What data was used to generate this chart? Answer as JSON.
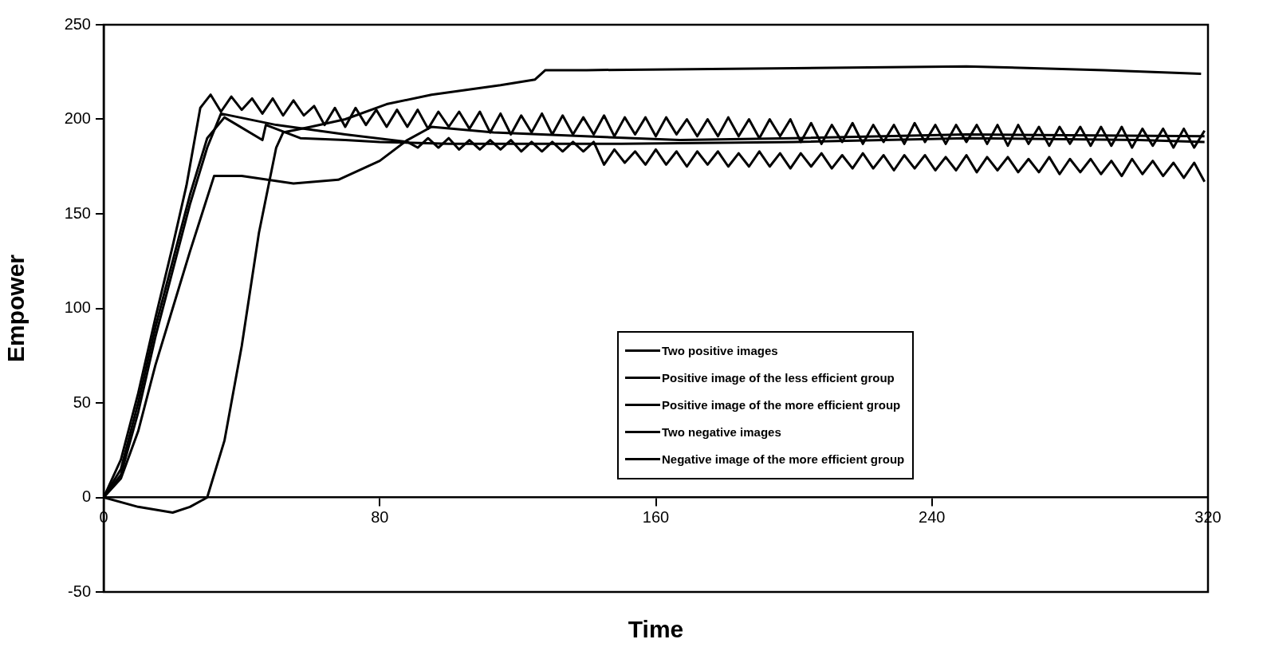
{
  "chart_data": {
    "type": "line",
    "xlabel": "Time",
    "ylabel": "Empower",
    "xlim": [
      0,
      320
    ],
    "xticks": [
      0,
      80,
      160,
      240,
      320
    ],
    "ylim": [
      -50,
      250
    ],
    "yticks": [
      -50,
      0,
      50,
      100,
      150,
      200,
      250
    ],
    "legend": "bottom right",
    "marker": "none",
    "line_style": "solid",
    "series": [
      {
        "name": "Two positive images",
        "color": "#000000",
        "x": [
          0,
          10,
          20,
          25,
          30,
          35,
          40,
          45,
          50,
          52,
          60,
          70,
          82,
          95,
          115,
          125,
          128,
          140,
          200,
          250,
          290,
          318
        ],
        "values": [
          0,
          -5,
          -8,
          -5,
          0,
          30,
          80,
          140,
          185,
          193,
          196,
          200,
          208,
          213,
          218,
          221,
          226,
          226,
          227,
          228,
          226,
          224
        ]
      },
      {
        "name": "Positive image of the less efficient group",
        "color": "#000000",
        "x": [
          0,
          5,
          10,
          15,
          20,
          24,
          28,
          31,
          34,
          37,
          40,
          43,
          46,
          49,
          52,
          55,
          58,
          61,
          64,
          67,
          70,
          73,
          76,
          79,
          82,
          85,
          88,
          91,
          94,
          97,
          100,
          103,
          106,
          109,
          112,
          115,
          118,
          121,
          124,
          127,
          130,
          133,
          136,
          139,
          142,
          145,
          148,
          151,
          154,
          157,
          160,
          163,
          166,
          169,
          172,
          175,
          178,
          181,
          184,
          187,
          190,
          193,
          196,
          199,
          202,
          205,
          208,
          211,
          214,
          217,
          220,
          223,
          226,
          229,
          232,
          235,
          238,
          241,
          244,
          247,
          250,
          253,
          256,
          259,
          262,
          265,
          268,
          271,
          274,
          277,
          280,
          283,
          286,
          289,
          292,
          295,
          298,
          301,
          304,
          307,
          310,
          313,
          316,
          319
        ],
        "values": [
          0,
          20,
          55,
          95,
          133,
          165,
          206,
          213,
          204,
          212,
          205,
          211,
          203,
          211,
          202,
          210,
          202,
          207,
          197,
          206,
          196,
          206,
          197,
          205,
          196,
          205,
          196,
          205,
          195,
          204,
          196,
          204,
          195,
          204,
          193,
          203,
          192,
          202,
          193,
          203,
          192,
          202,
          192,
          201,
          192,
          202,
          191,
          201,
          192,
          201,
          191,
          201,
          192,
          200,
          191,
          200,
          191,
          201,
          191,
          200,
          190,
          200,
          191,
          200,
          188,
          198,
          187,
          197,
          188,
          198,
          187,
          197,
          188,
          197,
          187,
          198,
          188,
          197,
          187,
          197,
          188,
          197,
          187,
          197,
          186,
          197,
          187,
          196,
          186,
          196,
          187,
          196,
          186,
          196,
          186,
          196,
          185,
          195,
          186,
          195,
          185,
          195,
          185,
          194
        ]
      },
      {
        "name": "Positive image of the more efficient group",
        "color": "#000000",
        "x": [
          0,
          5,
          10,
          15,
          20,
          25,
          30,
          34,
          50,
          70,
          88,
          91,
          94,
          97,
          100,
          103,
          106,
          109,
          112,
          115,
          118,
          121,
          124,
          127,
          130,
          133,
          136,
          139,
          142,
          145,
          148,
          151,
          154,
          157,
          160,
          163,
          166,
          169,
          172,
          175,
          178,
          181,
          184,
          187,
          190,
          193,
          196,
          199,
          202,
          205,
          208,
          211,
          214,
          217,
          220,
          223,
          226,
          229,
          232,
          235,
          238,
          241,
          244,
          247,
          250,
          253,
          256,
          259,
          262,
          265,
          268,
          271,
          274,
          277,
          280,
          283,
          286,
          289,
          292,
          295,
          298,
          301,
          304,
          307,
          310,
          313,
          316,
          319
        ],
        "values": [
          0,
          12,
          45,
          85,
          120,
          155,
          185,
          203,
          197,
          192,
          188,
          185,
          190,
          185,
          190,
          184,
          189,
          184,
          189,
          184,
          189,
          183,
          188,
          183,
          188,
          183,
          188,
          183,
          188,
          176,
          184,
          177,
          183,
          176,
          184,
          176,
          183,
          175,
          183,
          176,
          183,
          175,
          182,
          175,
          183,
          175,
          182,
          174,
          182,
          175,
          182,
          174,
          181,
          174,
          182,
          174,
          181,
          173,
          181,
          174,
          181,
          173,
          180,
          173,
          181,
          172,
          180,
          173,
          180,
          172,
          179,
          172,
          180,
          171,
          179,
          172,
          179,
          171,
          178,
          170,
          179,
          171,
          178,
          170,
          177,
          169,
          177,
          167
        ]
      },
      {
        "name": "Two negative images",
        "color": "#000000",
        "x": [
          0,
          5,
          10,
          15,
          20,
          25,
          32,
          40,
          55,
          68,
          80,
          88,
          95,
          113,
          167,
          200,
          250,
          319
        ],
        "values": [
          0,
          10,
          35,
          70,
          100,
          130,
          170,
          170,
          166,
          168,
          178,
          189,
          196,
          193,
          189,
          190,
          192,
          191
        ]
      },
      {
        "name": "Negative image of the more efficient group",
        "color": "#000000",
        "x": [
          0,
          5,
          10,
          15,
          20,
          25,
          30,
          35,
          46,
          47,
          57,
          70,
          80,
          100,
          150,
          200,
          250,
          300,
          319
        ],
        "values": [
          0,
          15,
          50,
          90,
          125,
          160,
          190,
          201,
          189,
          197,
          190,
          189,
          188,
          187,
          187,
          188,
          190,
          189,
          188
        ]
      }
    ]
  }
}
